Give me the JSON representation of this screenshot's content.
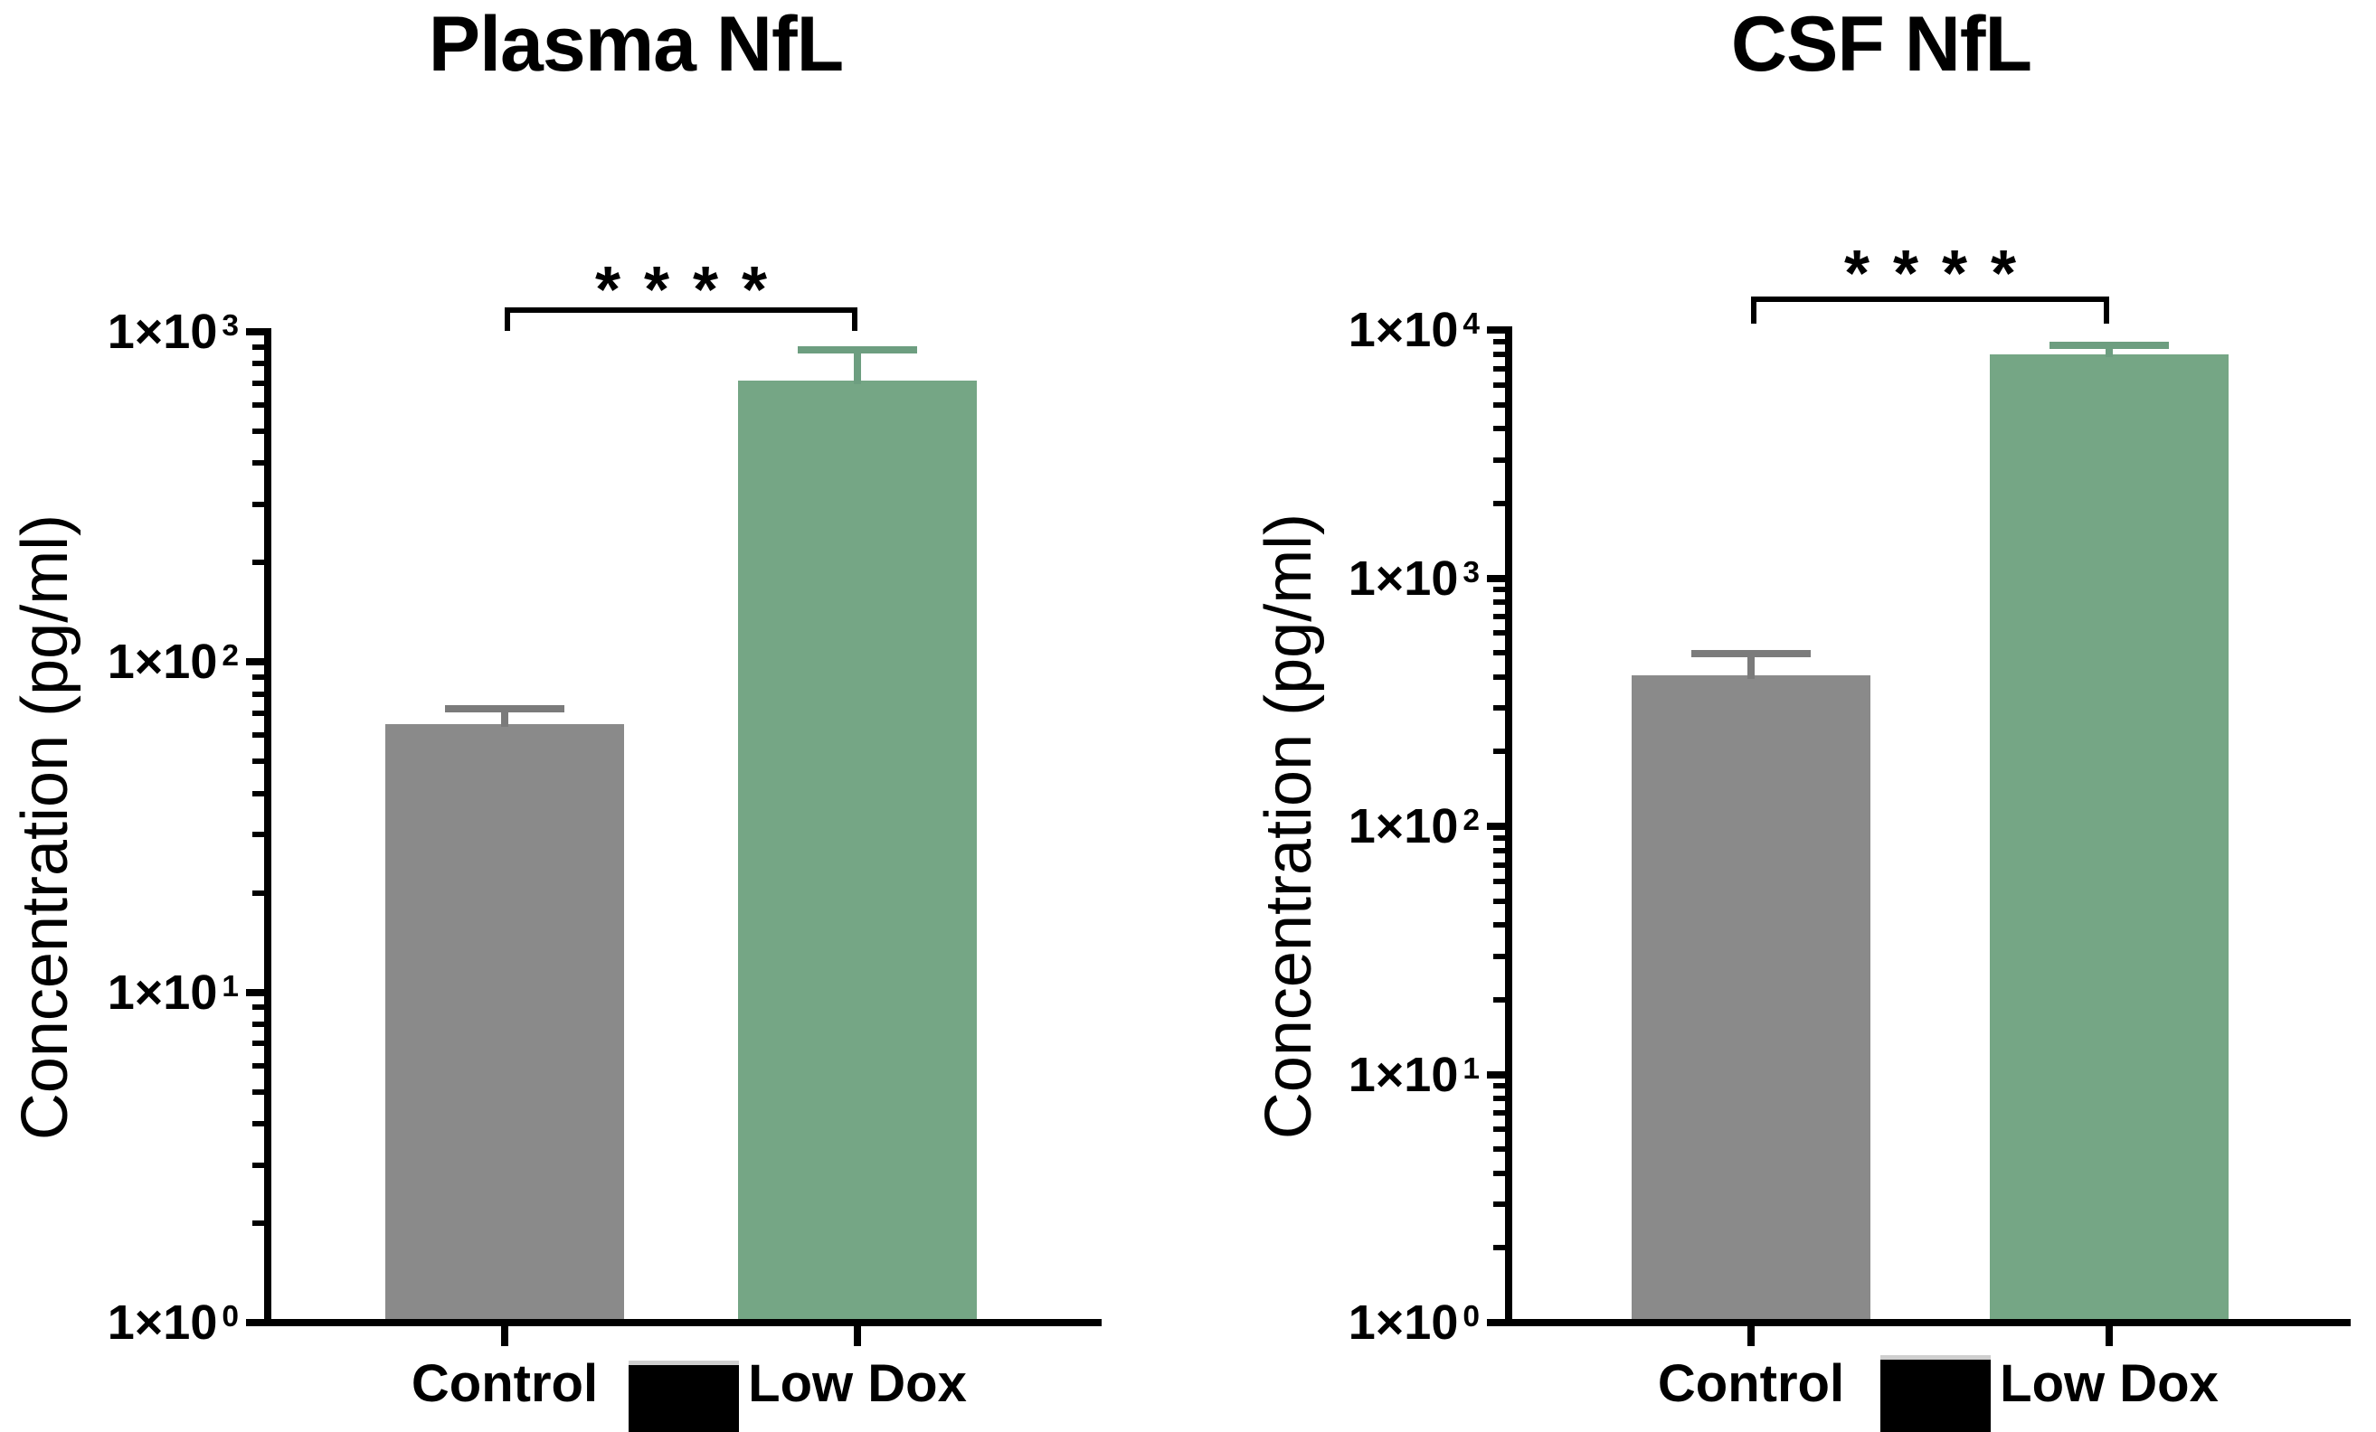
{
  "figure": {
    "background_color": "#ffffff",
    "axis_color": "#000000",
    "significance_color": "#000000"
  },
  "chart_data": [
    {
      "type": "bar",
      "title": "Plasma NfL",
      "ylabel": "Concentration (pg/ml)",
      "yscale": "log",
      "ylim_exponents": [
        0,
        3
      ],
      "y_ticks": [
        {
          "base": "1×10",
          "exp": "0"
        },
        {
          "base": "1×10",
          "exp": "1"
        },
        {
          "base": "1×10",
          "exp": "2"
        },
        {
          "base": "1×10",
          "exp": "3"
        }
      ],
      "grid": false,
      "legend_position": "none",
      "categories": [
        "Control",
        "Low Dox"
      ],
      "series": [
        {
          "name": "Control",
          "value": 65,
          "error_top": 72,
          "bar_color": "#8a8a8a",
          "error_color": "#7b7b7b"
        },
        {
          "name": "Low Dox",
          "value": 710,
          "error_top": 880,
          "bar_color": "#75a685",
          "error_color": "#6d9e80"
        }
      ],
      "significance": {
        "stars": "****",
        "between": [
          "Control",
          "Low Dox"
        ]
      },
      "legend_partial_swatch": {
        "fill": "#000000",
        "top_strip": "#cfcfcf"
      }
    },
    {
      "type": "bar",
      "title": "CSF NfL",
      "ylabel": "Concentration (pg/ml)",
      "yscale": "log",
      "ylim_exponents": [
        0,
        4
      ],
      "y_ticks": [
        {
          "base": "1×10",
          "exp": "0"
        },
        {
          "base": "1×10",
          "exp": "1"
        },
        {
          "base": "1×10",
          "exp": "2"
        },
        {
          "base": "1×10",
          "exp": "3"
        },
        {
          "base": "1×10",
          "exp": "4"
        }
      ],
      "grid": false,
      "legend_position": "none",
      "categories": [
        "Control",
        "Low Dox"
      ],
      "series": [
        {
          "name": "Control",
          "value": 405,
          "error_top": 495,
          "bar_color": "#8a8a8a",
          "error_color": "#7b7b7b"
        },
        {
          "name": "Low Dox",
          "value": 8000,
          "error_top": 8650,
          "bar_color": "#75a685",
          "error_color": "#6d9e80"
        }
      ],
      "significance": {
        "stars": "****",
        "between": [
          "Control",
          "Low Dox"
        ]
      },
      "legend_partial_swatch": {
        "fill": "#000000",
        "top_strip": "#cfcfcf"
      }
    }
  ]
}
